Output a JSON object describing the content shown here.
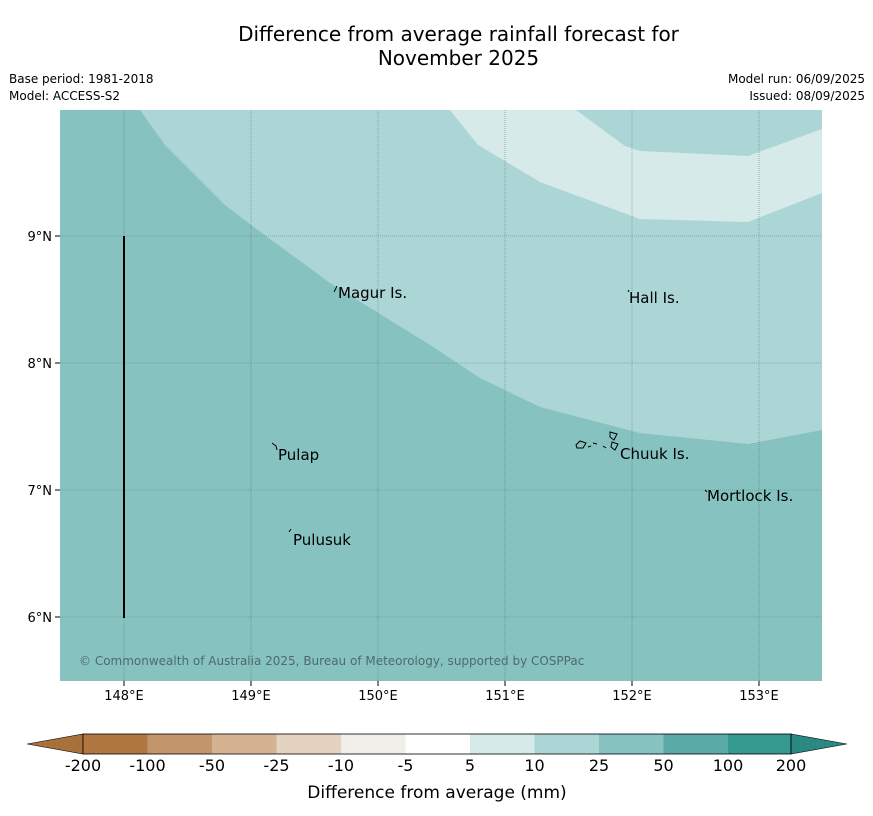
{
  "title": {
    "line1": "Difference from average rainfall forecast for",
    "line2": "November 2025"
  },
  "meta": {
    "base_period": "Base period: 1981-2018",
    "model": "Model: ACCESS-S2",
    "model_run": "Model run: 06/09/2025",
    "issued": "Issued: 08/09/2025"
  },
  "map": {
    "lat_ticks": [
      "9°N",
      "8°N",
      "7°N",
      "6°N"
    ],
    "lon_ticks": [
      "148°E",
      "149°E",
      "150°E",
      "151°E",
      "152°E",
      "153°E"
    ],
    "places": [
      "Magur Is.",
      "Hall Is.",
      "Pulap",
      "Chuuk Is.",
      "Mortlock Is.",
      "Pulusuk"
    ],
    "copyright": "© Commonwealth of Australia 2025, Bureau of Meteorology, supported by COSPPac",
    "zone_colors": {
      "25_to_50": "#86c2c0",
      "10_to_25": "#acd6d5",
      "5_to_10": "#d5eae9"
    }
  },
  "colorbar": {
    "ticks": [
      "-200",
      "-100",
      "-50",
      "-25",
      "-10",
      "-5",
      "5",
      "10",
      "25",
      "50",
      "100",
      "200"
    ],
    "colors": [
      "#a8713a",
      "#b07840",
      "#c2956a",
      "#d4b392",
      "#e5d3c2",
      "#f1efea",
      "#ffffff",
      "#d5eae9",
      "#acd6d5",
      "#86c2c0",
      "#5aaaa7",
      "#36998f",
      "#2a8a83"
    ],
    "label": "Difference from average (mm)"
  }
}
